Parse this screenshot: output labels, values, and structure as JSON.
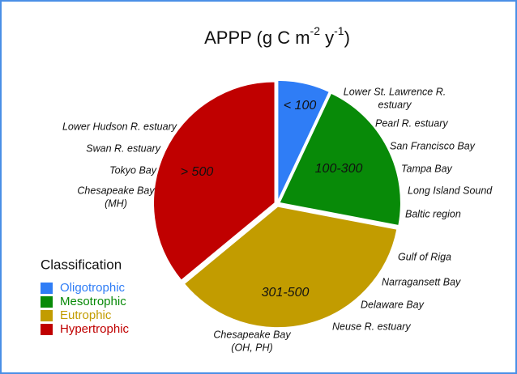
{
  "chart_data": {
    "type": "pie",
    "title_parts": [
      "APPP (g C m",
      "-2",
      " y",
      "-1",
      ")"
    ],
    "legend_title": "Classification",
    "categories": [
      "Oligotrophic",
      "Mesotrophic",
      "Eutrophic",
      "Hypertrophic"
    ],
    "slice_labels": [
      "< 100",
      "100-300",
      "301-500",
      "> 500"
    ],
    "values": [
      7,
      21,
      36,
      36
    ],
    "colors": [
      "#2f7df6",
      "#088a08",
      "#c29c00",
      "#c00000"
    ],
    "annotations": [
      [],
      [
        [
          "Lower St. Lawrence R.",
          "estuary"
        ],
        [
          "Pearl R. estuary"
        ],
        [
          "San Francisco Bay"
        ],
        [
          "Tampa Bay"
        ],
        [
          "Long Island Sound"
        ],
        [
          "Baltic region"
        ]
      ],
      [
        [
          "Gulf of Riga"
        ],
        [
          "Narragansett Bay"
        ],
        [
          "Delaware Bay"
        ],
        [
          "Neuse R. estuary"
        ],
        [
          "Chesapeake Bay",
          "(OH, PH)"
        ]
      ],
      [
        [
          "Lower Hudson R. estuary"
        ],
        [
          "Swan R. estuary"
        ],
        [
          "Tokyo Bay"
        ],
        [
          "Chesapeake Bay",
          "(MH)"
        ]
      ]
    ]
  }
}
